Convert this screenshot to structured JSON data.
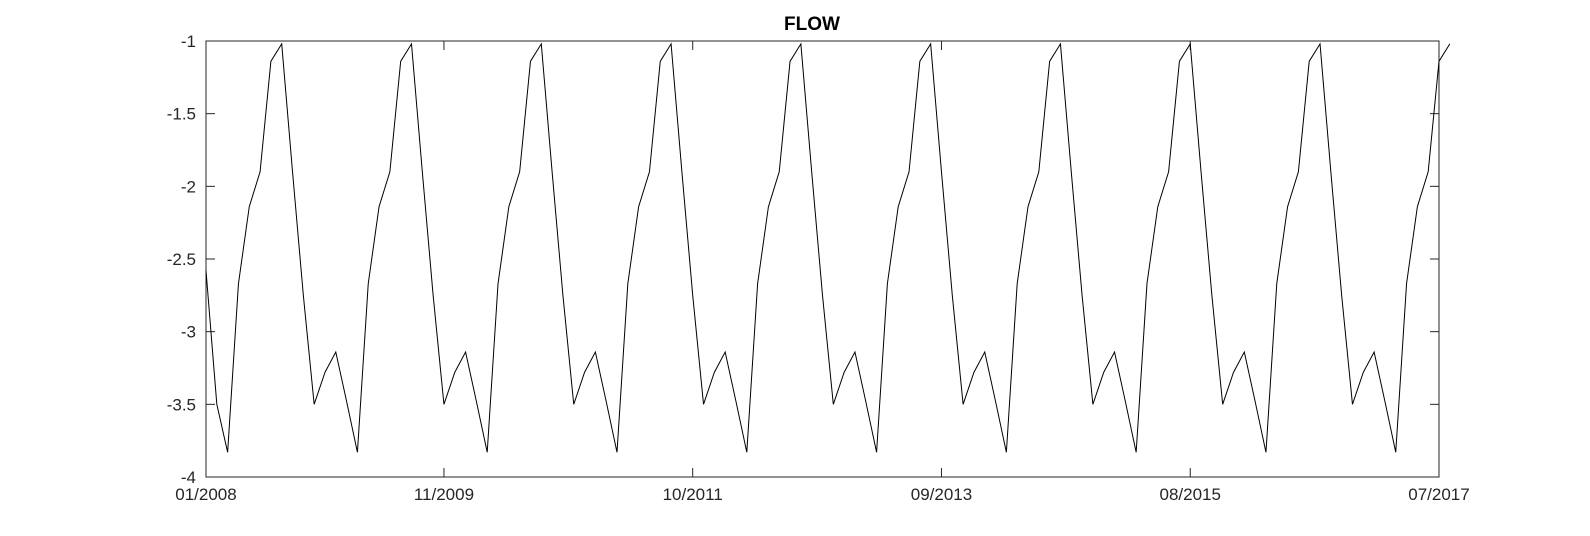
{
  "chart_data": {
    "type": "line",
    "title": "FLOW",
    "xlabel": "",
    "ylabel": "",
    "x_start": "01/2008",
    "x_end": "07/2017",
    "x_step": "month",
    "xlim": [
      "01/2008",
      "07/2017"
    ],
    "ylim": [
      -4,
      -1
    ],
    "grid": false,
    "x_ticks": [
      {
        "date": "01/2008",
        "label": "01/2008"
      },
      {
        "date": "11/2009",
        "label": "11/2009"
      },
      {
        "date": "10/2011",
        "label": "10/2011"
      },
      {
        "date": "09/2013",
        "label": "09/2013"
      },
      {
        "date": "08/2015",
        "label": "08/2015"
      },
      {
        "date": "07/2017",
        "label": "07/2017"
      }
    ],
    "y_ticks": [
      {
        "value": -1,
        "label": "-1"
      },
      {
        "value": -1.5,
        "label": "-1.5"
      },
      {
        "value": -2,
        "label": "-2"
      },
      {
        "value": -2.5,
        "label": "-2.5"
      },
      {
        "value": -3,
        "label": "-3"
      },
      {
        "value": -3.5,
        "label": "-3.5"
      },
      {
        "value": -4,
        "label": "-4"
      }
    ],
    "line_color": "#000000",
    "series": [
      {
        "values": [
          -2.58,
          -3.5,
          -3.83,
          -2.67,
          -2.14,
          -1.9,
          -1.14,
          -1.02,
          -1.9,
          -2.75,
          -3.5,
          -3.28,
          -3.14,
          -3.48,
          -3.83,
          -2.67,
          -2.14,
          -1.9,
          -1.14,
          -1.02,
          -1.9,
          -2.75,
          -3.5,
          -3.28,
          -3.14,
          -3.48,
          -3.83,
          -2.67,
          -2.14,
          -1.9,
          -1.14,
          -1.02,
          -1.9,
          -2.75,
          -3.5,
          -3.28,
          -3.14,
          -3.48,
          -3.83,
          -2.67,
          -2.14,
          -1.9,
          -1.14,
          -1.02,
          -1.9,
          -2.75,
          -3.5,
          -3.28,
          -3.14,
          -3.48,
          -3.83,
          -2.67,
          -2.14,
          -1.9,
          -1.14,
          -1.02,
          -1.9,
          -2.75,
          -3.5,
          -3.28,
          -3.14,
          -3.48,
          -3.83,
          -2.67,
          -2.14,
          -1.9,
          -1.14,
          -1.02,
          -1.9,
          -2.75,
          -3.5,
          -3.28,
          -3.14,
          -3.48,
          -3.83,
          -2.67,
          -2.14,
          -1.9,
          -1.14,
          -1.02,
          -1.9,
          -2.75,
          -3.5,
          -3.28,
          -3.14,
          -3.48,
          -3.83,
          -2.67,
          -2.14,
          -1.9,
          -1.14,
          -1.02,
          -1.9,
          -2.75,
          -3.5,
          -3.28,
          -3.14,
          -3.48,
          -3.83,
          -2.67,
          -2.14,
          -1.9,
          -1.14,
          -1.02,
          -1.9,
          -2.75,
          -3.5,
          -3.28,
          -3.14,
          -3.48,
          -3.83,
          -2.67,
          -2.14,
          -1.9,
          -1.14,
          -1.02
        ]
      }
    ]
  }
}
